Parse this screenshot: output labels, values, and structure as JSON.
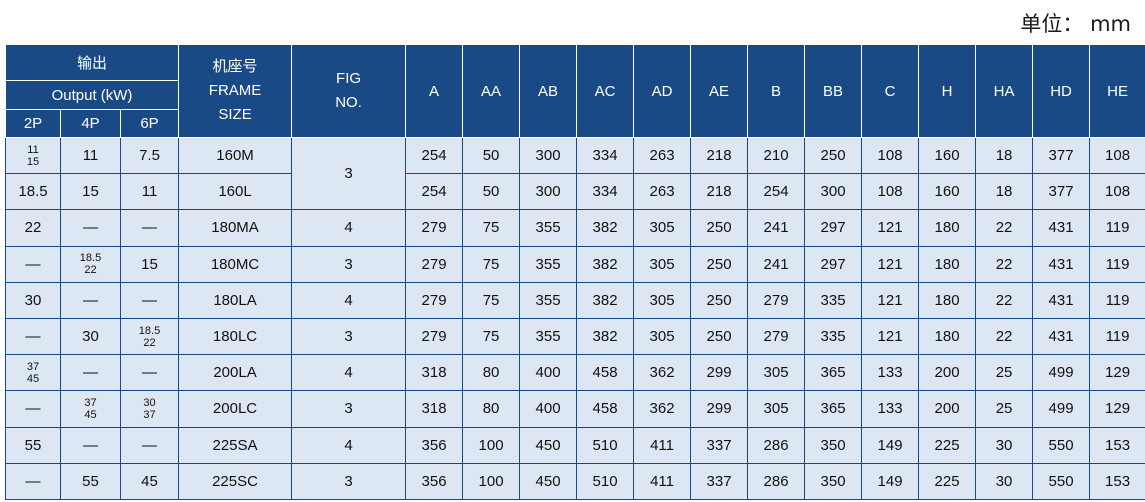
{
  "unit_label": "单位： mm",
  "header": {
    "output_cn": "输出",
    "output_en": "Output (kW)",
    "poles": [
      "2P",
      "4P",
      "6P"
    ],
    "frame": [
      "机座号",
      "FRAME",
      "SIZE"
    ],
    "fig": [
      "FIG",
      "NO."
    ],
    "dims": [
      "A",
      "AA",
      "AB",
      "AC",
      "AD",
      "AE",
      "B",
      "BB",
      "C",
      "H",
      "HA",
      "HD",
      "HE"
    ]
  },
  "rows": [
    {
      "p2": [
        "11",
        "15"
      ],
      "p4": "11",
      "p6": "7.5",
      "frame": "160M",
      "fig": "3",
      "fig_rowspan": 2,
      "dims": [
        "254",
        "50",
        "300",
        "334",
        "263",
        "218",
        "210",
        "250",
        "108",
        "160",
        "18",
        "377",
        "108"
      ]
    },
    {
      "p2": "18.5",
      "p4": "15",
      "p6": "11",
      "frame": "160L",
      "fig": null,
      "dims": [
        "254",
        "50",
        "300",
        "334",
        "263",
        "218",
        "254",
        "300",
        "108",
        "160",
        "18",
        "377",
        "108"
      ]
    },
    {
      "p2": "22",
      "p4": "—",
      "p6": "—",
      "frame": "180MA",
      "fig": "4",
      "dims": [
        "279",
        "75",
        "355",
        "382",
        "305",
        "250",
        "241",
        "297",
        "121",
        "180",
        "22",
        "431",
        "119"
      ]
    },
    {
      "p2": "—",
      "p4": [
        "18.5",
        "22"
      ],
      "p6": "15",
      "frame": "180MC",
      "fig": "3",
      "dims": [
        "279",
        "75",
        "355",
        "382",
        "305",
        "250",
        "241",
        "297",
        "121",
        "180",
        "22",
        "431",
        "119"
      ]
    },
    {
      "p2": "30",
      "p4": "—",
      "p6": "—",
      "frame": "180LA",
      "fig": "4",
      "dims": [
        "279",
        "75",
        "355",
        "382",
        "305",
        "250",
        "279",
        "335",
        "121",
        "180",
        "22",
        "431",
        "119"
      ]
    },
    {
      "p2": "—",
      "p4": "30",
      "p6": [
        "18.5",
        "22"
      ],
      "frame": "180LC",
      "fig": "3",
      "dims": [
        "279",
        "75",
        "355",
        "382",
        "305",
        "250",
        "279",
        "335",
        "121",
        "180",
        "22",
        "431",
        "119"
      ]
    },
    {
      "p2": [
        "37",
        "45"
      ],
      "p4": "—",
      "p6": "—",
      "frame": "200LA",
      "fig": "4",
      "dims": [
        "318",
        "80",
        "400",
        "458",
        "362",
        "299",
        "305",
        "365",
        "133",
        "200",
        "25",
        "499",
        "129"
      ]
    },
    {
      "p2": "—",
      "p4": [
        "37",
        "45"
      ],
      "p6": [
        "30",
        "37"
      ],
      "frame": "200LC",
      "fig": "3",
      "dims": [
        "318",
        "80",
        "400",
        "458",
        "362",
        "299",
        "305",
        "365",
        "133",
        "200",
        "25",
        "499",
        "129"
      ]
    },
    {
      "p2": "55",
      "p4": "—",
      "p6": "—",
      "frame": "225SA",
      "fig": "4",
      "dims": [
        "356",
        "100",
        "450",
        "510",
        "411",
        "337",
        "286",
        "350",
        "149",
        "225",
        "30",
        "550",
        "153"
      ]
    },
    {
      "p2": "—",
      "p4": "55",
      "p6": "45",
      "frame": "225SC",
      "fig": "3",
      "dims": [
        "356",
        "100",
        "450",
        "510",
        "411",
        "337",
        "286",
        "350",
        "149",
        "225",
        "30",
        "550",
        "153"
      ]
    }
  ],
  "colors": {
    "header_bg": "#1a4a86",
    "cell_bg": "#dde7f3",
    "grid": "#1a4a86"
  }
}
